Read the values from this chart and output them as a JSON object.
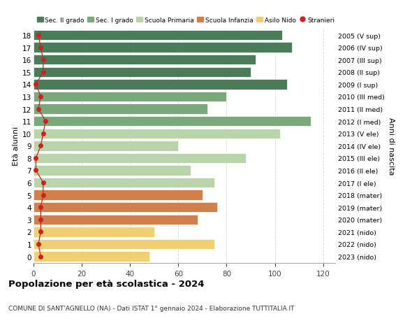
{
  "ages": [
    18,
    17,
    16,
    15,
    14,
    13,
    12,
    11,
    10,
    9,
    8,
    7,
    6,
    5,
    4,
    3,
    2,
    1,
    0
  ],
  "right_labels": [
    "2005 (V sup)",
    "2006 (IV sup)",
    "2007 (III sup)",
    "2008 (II sup)",
    "2009 (I sup)",
    "2010 (III med)",
    "2011 (II med)",
    "2012 (I med)",
    "2013 (V ele)",
    "2014 (IV ele)",
    "2015 (III ele)",
    "2016 (II ele)",
    "2017 (I ele)",
    "2018 (mater)",
    "2019 (mater)",
    "2020 (mater)",
    "2021 (nido)",
    "2022 (nido)",
    "2023 (nido)"
  ],
  "bar_values": [
    103,
    107,
    92,
    90,
    105,
    80,
    72,
    115,
    102,
    60,
    88,
    65,
    75,
    70,
    76,
    68,
    50,
    75,
    48
  ],
  "bar_colors": [
    "#4a7c59",
    "#4a7c59",
    "#4a7c59",
    "#4a7c59",
    "#4a7c59",
    "#7aa87a",
    "#7aa87a",
    "#7aa87a",
    "#b8d4a8",
    "#b8d4a8",
    "#b8d4a8",
    "#b8d4a8",
    "#b8d4a8",
    "#d2804a",
    "#d2804a",
    "#d2804a",
    "#f0d070",
    "#f0d070",
    "#f0d070"
  ],
  "stranieri_values": [
    2,
    3,
    4,
    4,
    1,
    3,
    2,
    5,
    4,
    3,
    1,
    1,
    4,
    4,
    3,
    3,
    3,
    2,
    3
  ],
  "legend_labels": [
    "Sec. II grado",
    "Sec. I grado",
    "Scuola Primaria",
    "Scuola Infanzia",
    "Asilo Nido",
    "Stranieri"
  ],
  "legend_colors": [
    "#4a7c59",
    "#7aa87a",
    "#b8d4a8",
    "#d2804a",
    "#f0d070",
    "#cc2222"
  ],
  "title": "Popolazione per età scolastica - 2024",
  "subtitle": "COMUNE DI SANT'AGNELLO (NA) - Dati ISTAT 1° gennaio 2024 - Elaborazione TUTTITALIA.IT",
  "ylabel": "Età alunni",
  "ylabel_right": "Anni di nascita",
  "xlim": [
    0,
    125
  ],
  "xticks": [
    0,
    20,
    40,
    60,
    80,
    100,
    120
  ],
  "background_color": "#ffffff",
  "grid_color": "#dddddd"
}
